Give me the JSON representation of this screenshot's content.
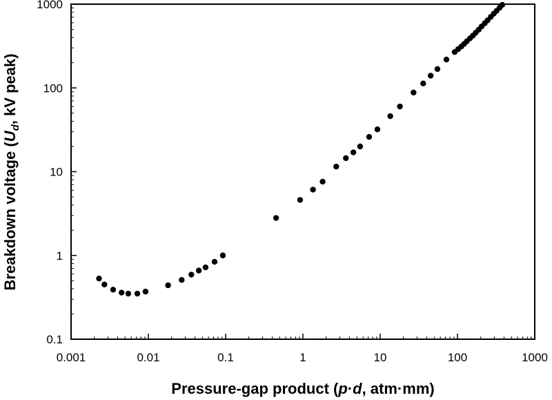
{
  "chart_data": {
    "type": "scatter",
    "xscale": "log",
    "yscale": "log",
    "xlim": [
      0.001,
      1000
    ],
    "ylim": [
      0.1,
      1000
    ],
    "grid": false,
    "xlabel": "Pressure-gap product (p·d, atm·mm)",
    "ylabel": "Breakdown voltage (Ud, kV peak)",
    "xlabel_parts": {
      "prefix": "Pressure-gap product (",
      "p": "p",
      "dot": "·",
      "d": "d",
      "suffix": ", atm·mm)"
    },
    "ylabel_parts": {
      "prefix": "Breakdown voltage (",
      "U": "U",
      "sub": "d",
      "suffix": ", kV peak)"
    },
    "xticks": [
      "0.001",
      "0.01",
      "0.1",
      "1",
      "10",
      "100",
      "1000"
    ],
    "xtick_values": [
      0.001,
      0.01,
      0.1,
      1,
      10,
      100,
      1000
    ],
    "yticks": [
      "0.1",
      "1",
      "10",
      "100",
      "1000"
    ],
    "ytick_values": [
      0.1,
      1,
      10,
      100,
      1000
    ],
    "marker_color": "#000000",
    "series": [
      {
        "x": [
          0.0023,
          0.0027,
          0.0035,
          0.0045,
          0.0055,
          0.0072,
          0.0092,
          0.018,
          0.027,
          0.036,
          0.045,
          0.055,
          0.072,
          0.092,
          0.45,
          0.92,
          1.35,
          1.8,
          2.7,
          3.6,
          4.5,
          5.5,
          7.2,
          9.2,
          13.5,
          18,
          27,
          36,
          45,
          55,
          72,
          92,
          102,
          112,
          122,
          132,
          145,
          158,
          172,
          188,
          205,
          225,
          245,
          270,
          295,
          320,
          350,
          380
        ],
        "y": [
          0.53,
          0.45,
          0.39,
          0.36,
          0.35,
          0.35,
          0.37,
          0.44,
          0.51,
          0.59,
          0.66,
          0.72,
          0.84,
          1.0,
          2.8,
          4.6,
          6.1,
          7.6,
          11.5,
          14.5,
          17,
          20,
          26,
          32,
          46,
          60,
          88,
          113,
          140,
          168,
          218,
          268,
          290,
          312,
          335,
          360,
          390,
          420,
          455,
          495,
          540,
          590,
          640,
          705,
          770,
          830,
          905,
          980
        ]
      }
    ]
  }
}
